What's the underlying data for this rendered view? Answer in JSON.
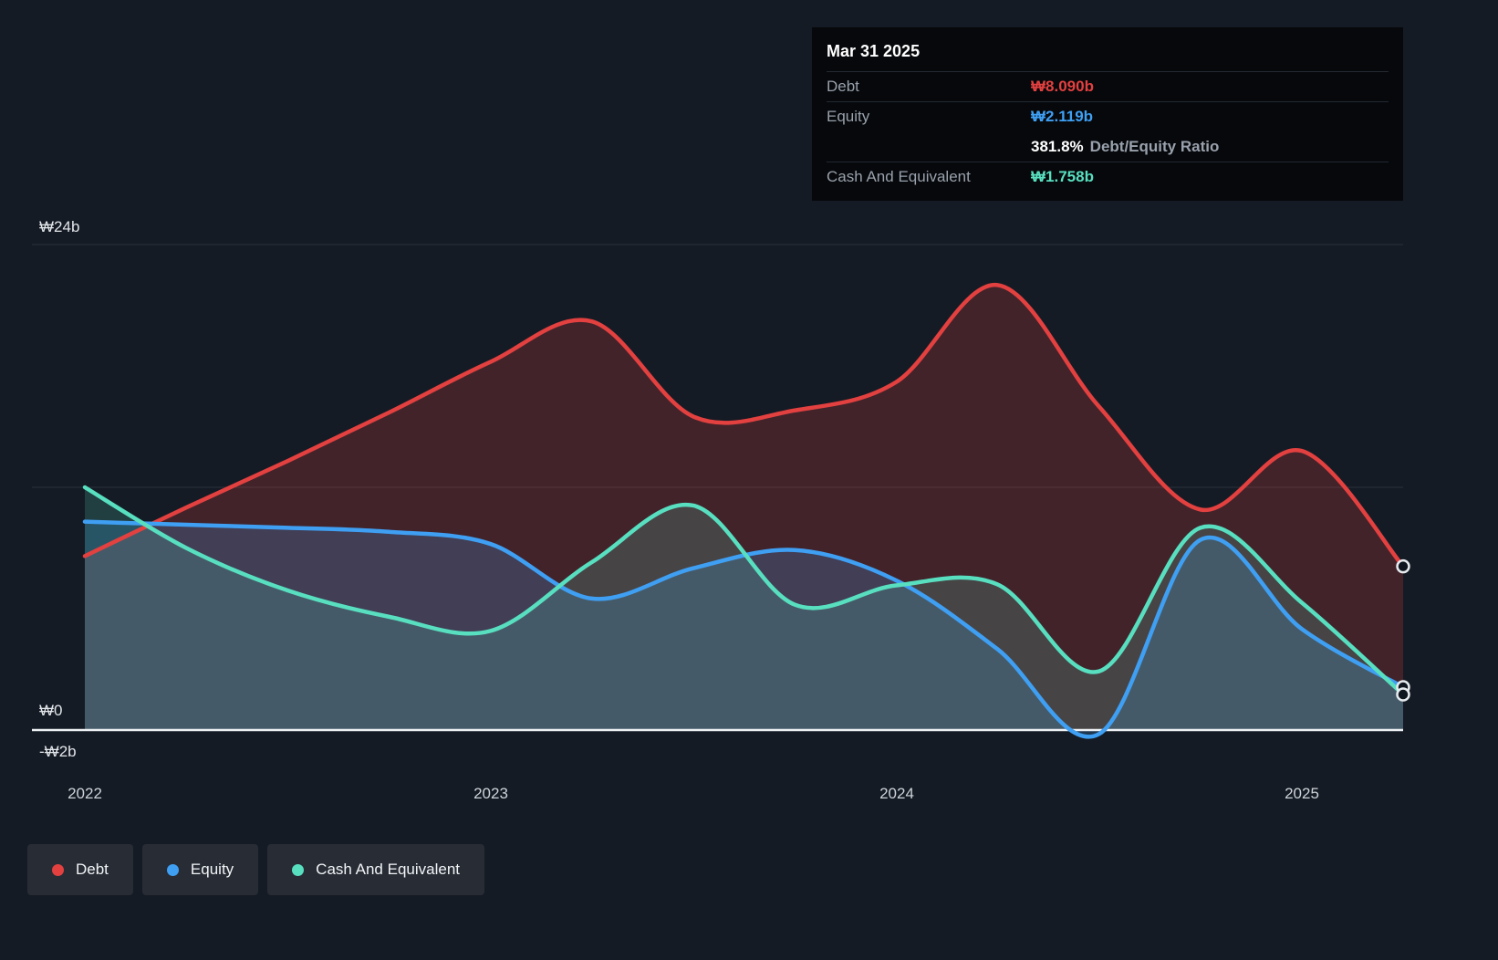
{
  "tooltip": {
    "title": "Mar 31 2025",
    "debt_label": "Debt",
    "debt_value": "₩8.090b",
    "equity_label": "Equity",
    "equity_value": "₩2.119b",
    "ratio_value": "381.8%",
    "ratio_label": "Debt/Equity Ratio",
    "cash_label": "Cash And Equivalent",
    "cash_value": "₩1.758b"
  },
  "chart_data": {
    "type": "area",
    "unit": "KRW billions",
    "x": [
      2022,
      2022.25,
      2022.5,
      2022.75,
      2023,
      2023.25,
      2023.5,
      2023.75,
      2024,
      2024.25,
      2024.5,
      2024.75,
      2025,
      2025.25
    ],
    "series": [
      {
        "name": "Debt",
        "color": "#e34040",
        "fill": "rgba(227,64,64,0.22)",
        "values": [
          8.6,
          11.0,
          13.3,
          15.7,
          18.2,
          20.2,
          15.5,
          15.8,
          17.2,
          22.0,
          16.0,
          10.9,
          13.8,
          8.09
        ]
      },
      {
        "name": "Equity",
        "color": "#3f9ff3",
        "fill": "rgba(63,159,243,0.22)",
        "values": [
          10.3,
          10.15,
          10.0,
          9.8,
          9.2,
          6.5,
          8.0,
          8.9,
          7.4,
          4.0,
          -0.2,
          9.4,
          5.0,
          2.119
        ]
      },
      {
        "name": "Cash And Equivalent",
        "color": "#58dfc0",
        "fill": "rgba(88,223,192,0.18)",
        "values": [
          12.0,
          9.0,
          6.9,
          5.6,
          4.9,
          8.3,
          11.1,
          6.2,
          7.15,
          7.2,
          2.9,
          10.0,
          6.3,
          1.758
        ]
      }
    ],
    "ylim": [
      -2,
      24
    ],
    "x_range": [
      2022,
      2025.25
    ],
    "gridline_values": [
      24,
      12,
      0
    ],
    "y_tick_labels": {
      "top": "₩24b",
      "zero": "₩0",
      "neg": "-₩2b"
    },
    "x_tick_labels": [
      "2022",
      "2023",
      "2024",
      "2025"
    ]
  }
}
